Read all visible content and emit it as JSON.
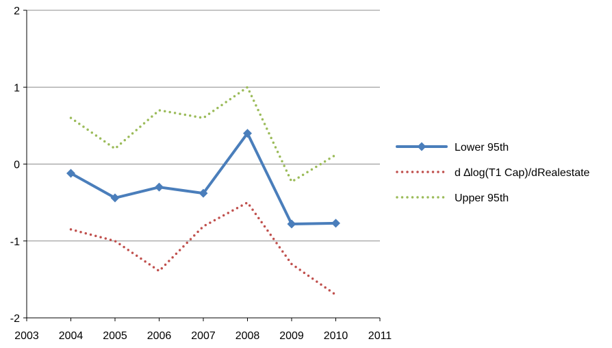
{
  "chart_data": {
    "type": "line",
    "title": "",
    "xlabel": "",
    "ylabel": "",
    "xlim": [
      2003,
      2011
    ],
    "ylim": [
      -2,
      2
    ],
    "x_ticks": [
      "2003",
      "2004",
      "2005",
      "2006",
      "2007",
      "2008",
      "2009",
      "2010",
      "2011"
    ],
    "y_ticks": [
      "-2",
      "-1",
      "0",
      "1",
      "2"
    ],
    "grid": "horizontal",
    "legend_position": "right",
    "x": [
      2004,
      2005,
      2006,
      2007,
      2008,
      2009,
      2010
    ],
    "series": [
      {
        "name": "Lower 95th",
        "color": "#4a7ebb",
        "style": "solid-diamond",
        "values": [
          -0.12,
          -0.44,
          -0.3,
          -0.38,
          0.4,
          -0.78,
          -0.77
        ]
      },
      {
        "name": "d ∆log(T1 Cap)/dRealestate",
        "color": "#c0504d",
        "style": "dotted",
        "values": [
          -0.85,
          -1.0,
          -1.39,
          -0.81,
          -0.5,
          -1.3,
          -1.7
        ]
      },
      {
        "name": "Upper 95th",
        "color": "#9bbb59",
        "style": "dotted",
        "values": [
          0.6,
          0.2,
          0.7,
          0.6,
          1.0,
          -0.23,
          0.12
        ]
      }
    ]
  }
}
